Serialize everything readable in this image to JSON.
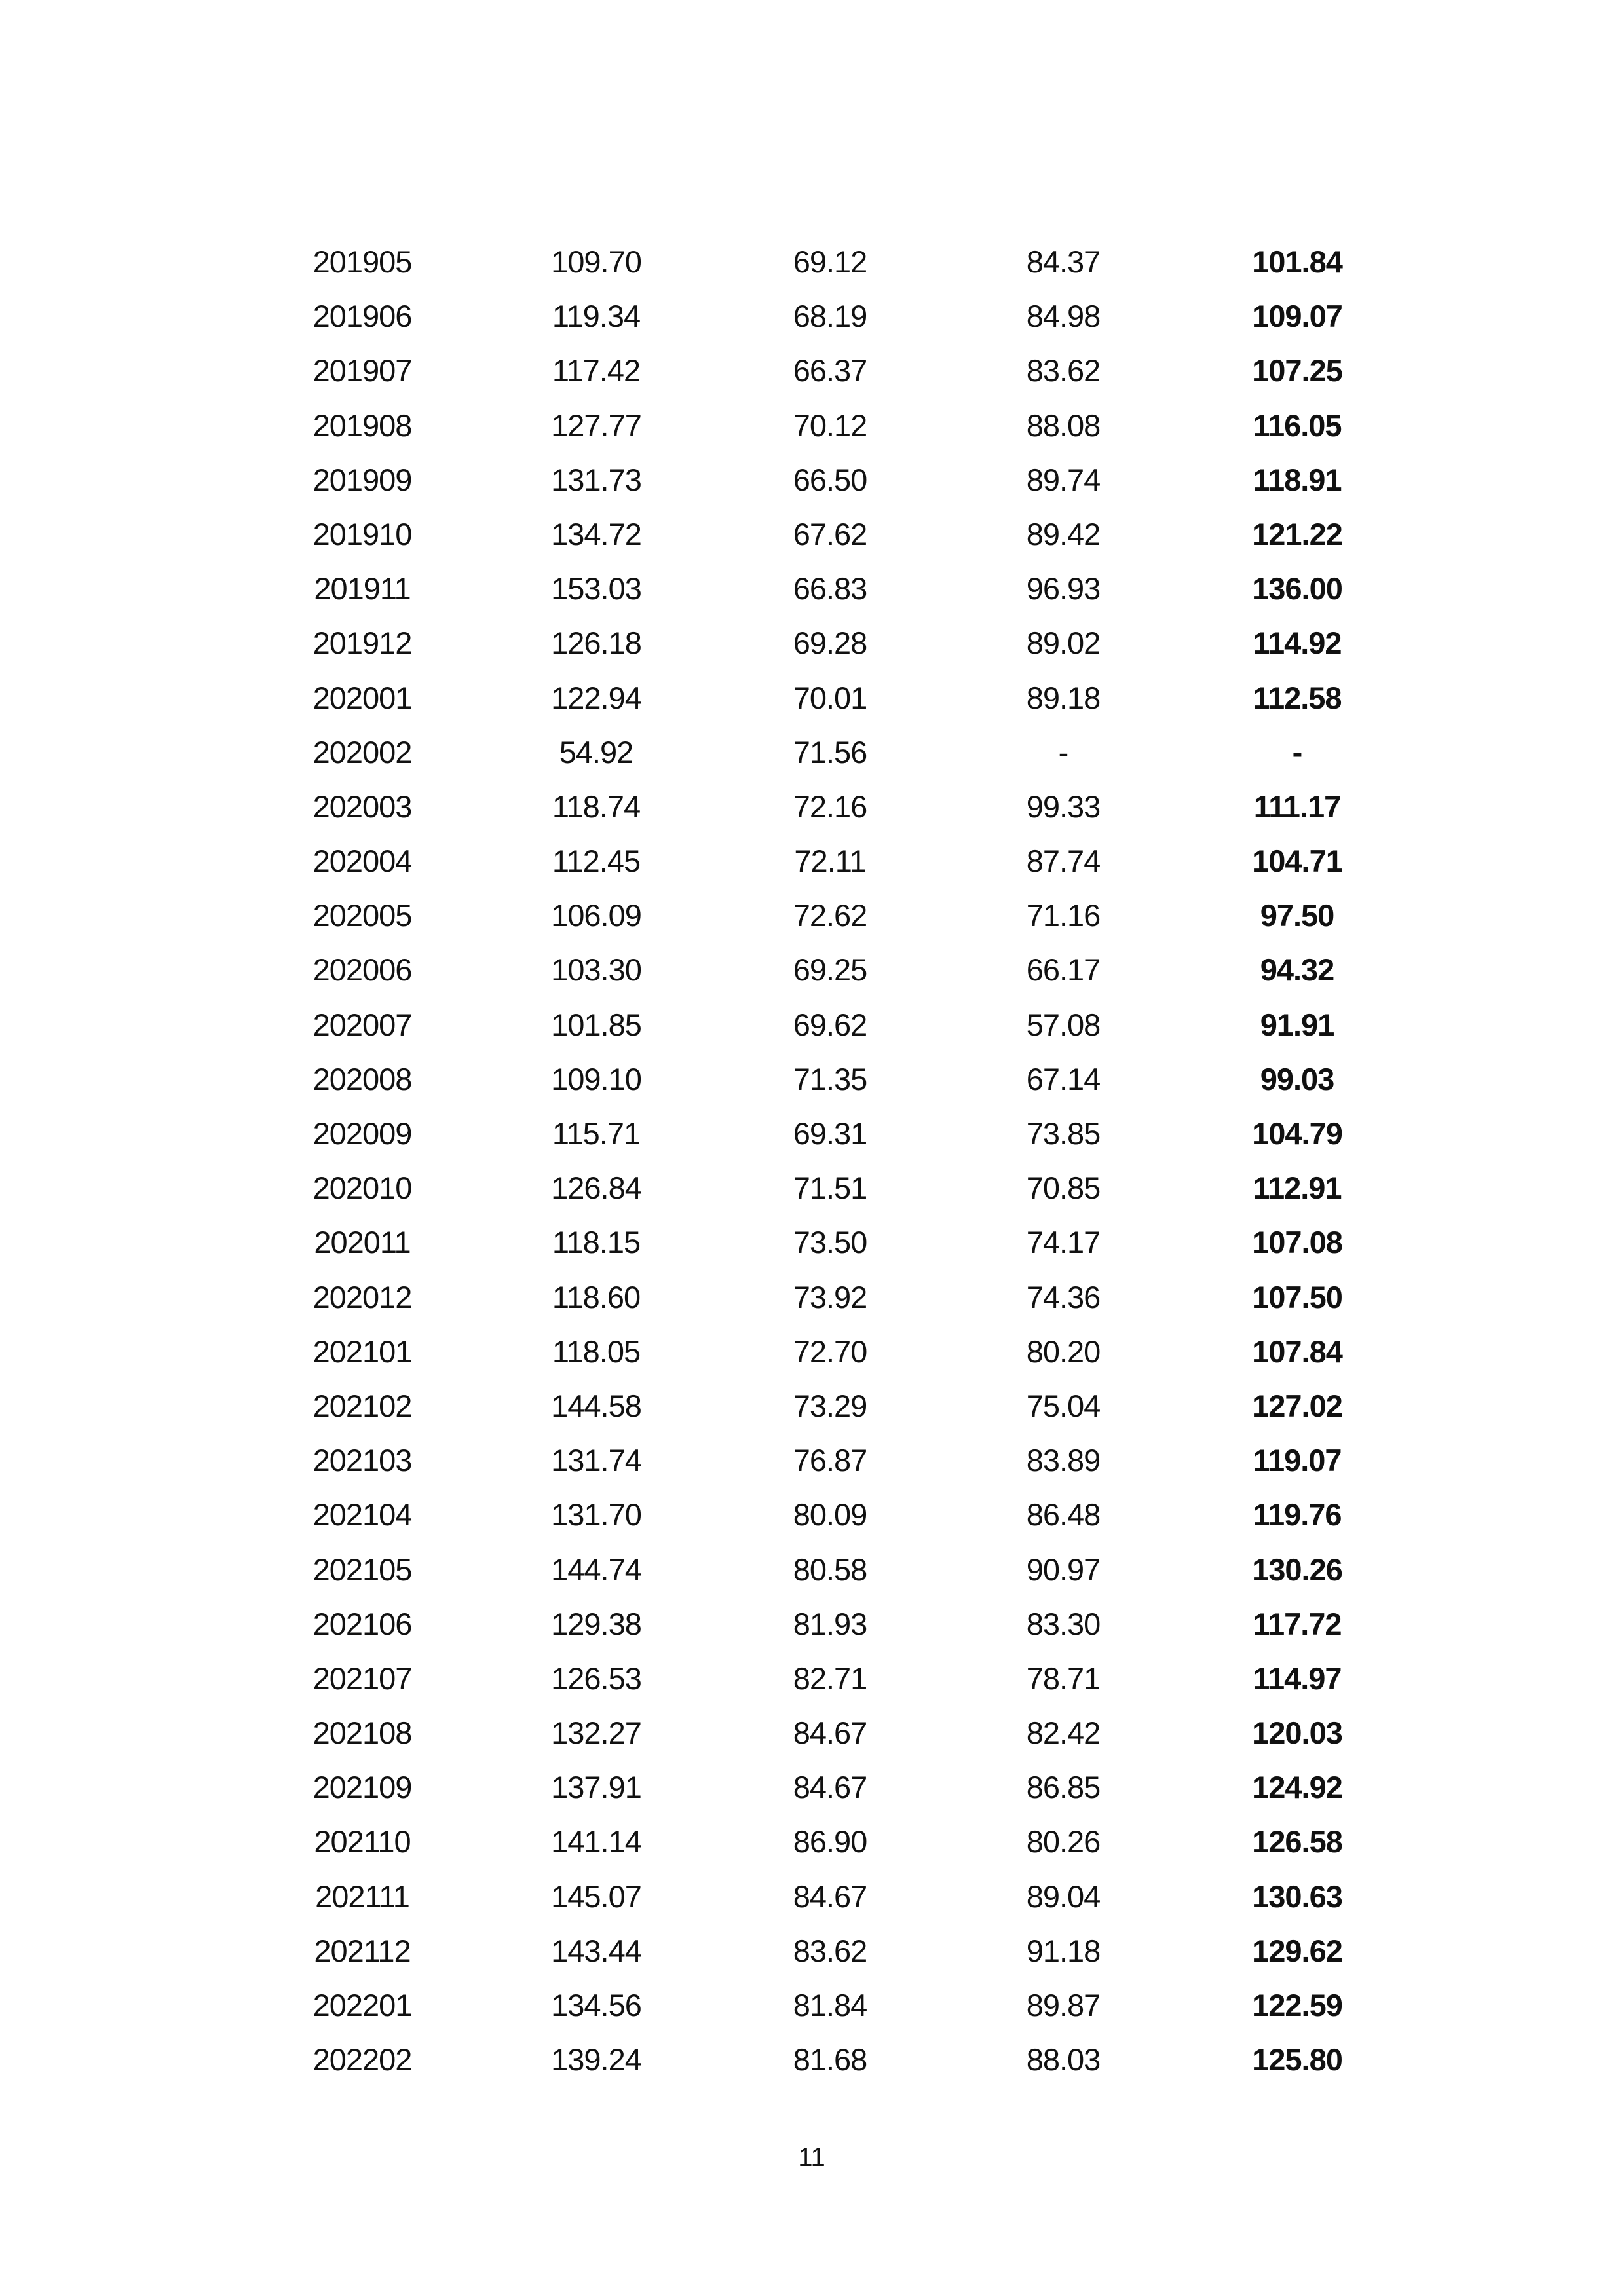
{
  "table": {
    "rows": [
      [
        "201905",
        "109.70",
        "69.12",
        "84.37",
        "101.84"
      ],
      [
        "201906",
        "119.34",
        "68.19",
        "84.98",
        "109.07"
      ],
      [
        "201907",
        "117.42",
        "66.37",
        "83.62",
        "107.25"
      ],
      [
        "201908",
        "127.77",
        "70.12",
        "88.08",
        "116.05"
      ],
      [
        "201909",
        "131.73",
        "66.50",
        "89.74",
        "118.91"
      ],
      [
        "201910",
        "134.72",
        "67.62",
        "89.42",
        "121.22"
      ],
      [
        "201911",
        "153.03",
        "66.83",
        "96.93",
        "136.00"
      ],
      [
        "201912",
        "126.18",
        "69.28",
        "89.02",
        "114.92"
      ],
      [
        "202001",
        "122.94",
        "70.01",
        "89.18",
        "112.58"
      ],
      [
        "202002",
        "54.92",
        "71.56",
        "-",
        "-"
      ],
      [
        "202003",
        "118.74",
        "72.16",
        "99.33",
        "111.17"
      ],
      [
        "202004",
        "112.45",
        "72.11",
        "87.74",
        "104.71"
      ],
      [
        "202005",
        "106.09",
        "72.62",
        "71.16",
        "97.50"
      ],
      [
        "202006",
        "103.30",
        "69.25",
        "66.17",
        "94.32"
      ],
      [
        "202007",
        "101.85",
        "69.62",
        "57.08",
        "91.91"
      ],
      [
        "202008",
        "109.10",
        "71.35",
        "67.14",
        "99.03"
      ],
      [
        "202009",
        "115.71",
        "69.31",
        "73.85",
        "104.79"
      ],
      [
        "202010",
        "126.84",
        "71.51",
        "70.85",
        "112.91"
      ],
      [
        "202011",
        "118.15",
        "73.50",
        "74.17",
        "107.08"
      ],
      [
        "202012",
        "118.60",
        "73.92",
        "74.36",
        "107.50"
      ],
      [
        "202101",
        "118.05",
        "72.70",
        "80.20",
        "107.84"
      ],
      [
        "202102",
        "144.58",
        "73.29",
        "75.04",
        "127.02"
      ],
      [
        "202103",
        "131.74",
        "76.87",
        "83.89",
        "119.07"
      ],
      [
        "202104",
        "131.70",
        "80.09",
        "86.48",
        "119.76"
      ],
      [
        "202105",
        "144.74",
        "80.58",
        "90.97",
        "130.26"
      ],
      [
        "202106",
        "129.38",
        "81.93",
        "83.30",
        "117.72"
      ],
      [
        "202107",
        "126.53",
        "82.71",
        "78.71",
        "114.97"
      ],
      [
        "202108",
        "132.27",
        "84.67",
        "82.42",
        "120.03"
      ],
      [
        "202109",
        "137.91",
        "84.67",
        "86.85",
        "124.92"
      ],
      [
        "202110",
        "141.14",
        "86.90",
        "80.26",
        "126.58"
      ],
      [
        "202111",
        "145.07",
        "84.67",
        "89.04",
        "130.63"
      ],
      [
        "202112",
        "143.44",
        "83.62",
        "91.18",
        "129.62"
      ],
      [
        "202201",
        "134.56",
        "81.84",
        "89.87",
        "122.59"
      ],
      [
        "202202",
        "139.24",
        "81.68",
        "88.03",
        "125.80"
      ]
    ]
  },
  "footer": {
    "page_number": "11"
  }
}
